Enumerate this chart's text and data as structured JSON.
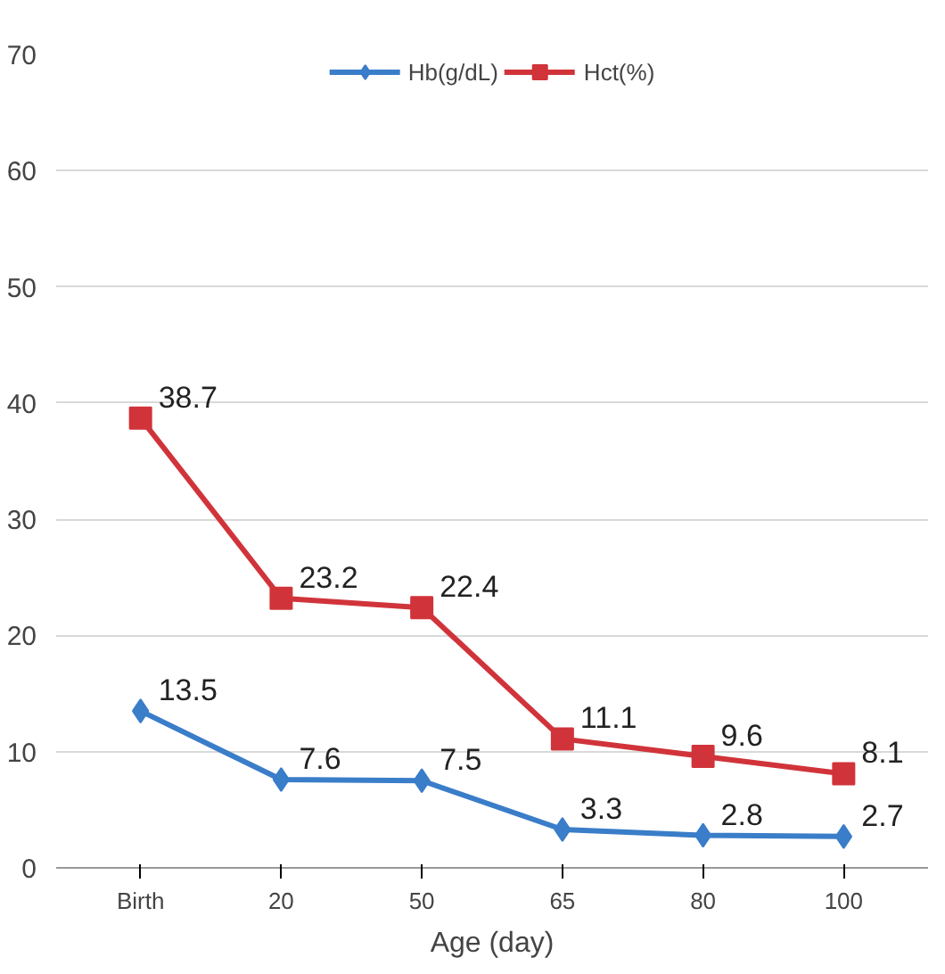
{
  "chart_data": {
    "type": "line",
    "xlabel": "Age (day)",
    "categories": [
      "Birth",
      "20",
      "50",
      "65",
      "80",
      "100"
    ],
    "series": [
      {
        "name": "Hb(g/dL)",
        "color": "#3a7dc9",
        "marker": "diamond",
        "values": [
          13.5,
          7.6,
          7.5,
          3.3,
          2.8,
          2.7
        ]
      },
      {
        "name": "Hct(%)",
        "color": "#d0343a",
        "marker": "square",
        "values": [
          38.7,
          23.2,
          22.4,
          11.1,
          9.6,
          8.1
        ]
      }
    ],
    "ylim": [
      0,
      70
    ],
    "yticks": [
      0,
      10,
      20,
      30,
      40,
      50,
      60,
      70
    ],
    "grid": "y",
    "legend": "top",
    "data_labels": true,
    "line_style": "solid"
  }
}
